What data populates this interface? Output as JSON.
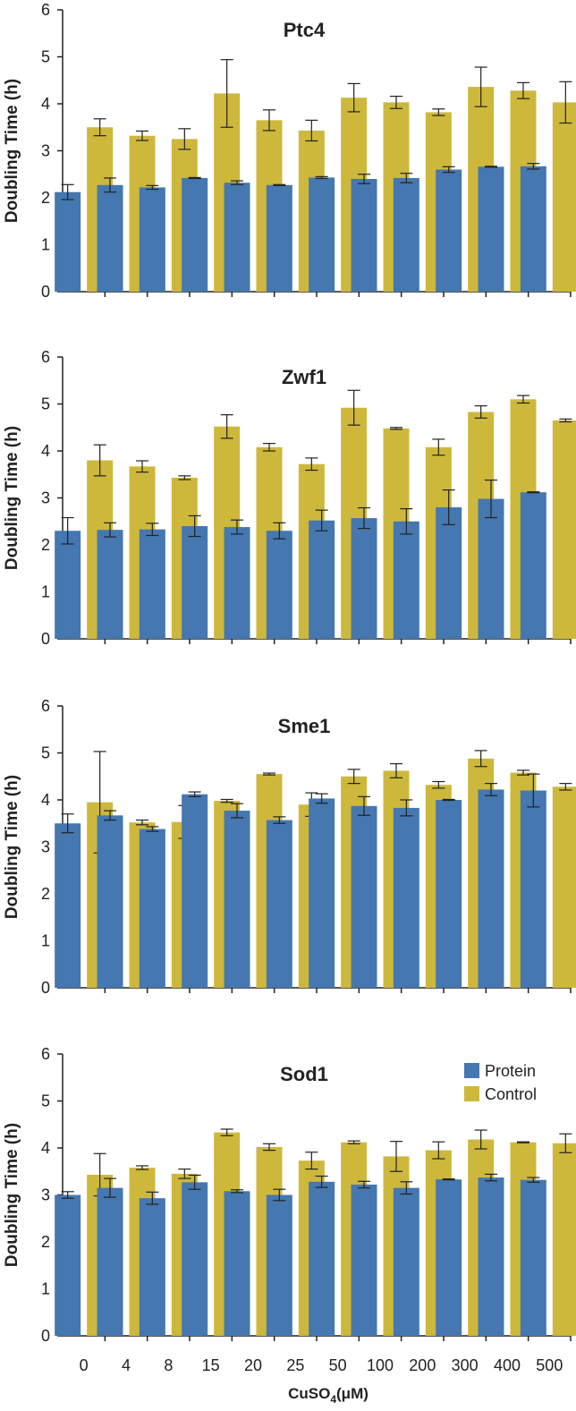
{
  "colors": {
    "protein": "#4577B0",
    "control": "#CDB83C",
    "axis": "#222222",
    "error": "#222222"
  },
  "legend": {
    "items": [
      {
        "label": "Protein"
      },
      {
        "label": "Control"
      }
    ],
    "placement": "top-right of bottom panel"
  },
  "xaxis": {
    "label_main": "CuSO",
    "label_sub": "4",
    "label_unit": "(μM)"
  },
  "chart_data": [
    {
      "type": "bar",
      "title": "Ptc4",
      "ylabel": "Doubling Time (h)",
      "ylim": [
        0,
        6
      ],
      "categories": [
        "0",
        "4",
        "8",
        "15",
        "20",
        "25",
        "50",
        "100",
        "200",
        "300",
        "400",
        "500"
      ],
      "series": [
        {
          "name": "Protein",
          "values": [
            2.12,
            2.27,
            2.22,
            2.42,
            2.32,
            2.27,
            2.43,
            2.4,
            2.42,
            2.6,
            2.66,
            2.67
          ],
          "errors": [
            0.16,
            0.15,
            0.04,
            0.01,
            0.04,
            0.01,
            0.02,
            0.1,
            0.1,
            0.06,
            0.01,
            0.06
          ]
        },
        {
          "name": "Control",
          "values": [
            3.5,
            3.32,
            3.25,
            4.22,
            3.65,
            3.43,
            4.13,
            4.03,
            3.82,
            4.36,
            4.28,
            4.03
          ],
          "errors": [
            0.18,
            0.1,
            0.22,
            0.72,
            0.22,
            0.22,
            0.3,
            0.13,
            0.07,
            0.42,
            0.17,
            0.44
          ]
        }
      ]
    },
    {
      "type": "bar",
      "title": "Zwf1",
      "ylabel": "Doubling Time (h)",
      "ylim": [
        0,
        6
      ],
      "categories": [
        "0",
        "4",
        "8",
        "15",
        "20",
        "25",
        "50",
        "100",
        "200",
        "300",
        "400",
        "500"
      ],
      "series": [
        {
          "name": "Protein",
          "values": [
            2.3,
            2.32,
            2.33,
            2.4,
            2.38,
            2.3,
            2.52,
            2.57,
            2.5,
            2.8,
            2.98,
            3.12
          ],
          "errors": [
            0.28,
            0.15,
            0.13,
            0.22,
            0.15,
            0.17,
            0.22,
            0.22,
            0.27,
            0.37,
            0.4,
            0.01
          ]
        },
        {
          "name": "Control",
          "values": [
            3.8,
            3.67,
            3.43,
            4.52,
            4.08,
            3.72,
            4.92,
            4.48,
            4.08,
            4.83,
            5.1,
            4.65
          ],
          "errors": [
            0.33,
            0.12,
            0.04,
            0.25,
            0.08,
            0.13,
            0.37,
            0.02,
            0.17,
            0.13,
            0.08,
            0.03
          ]
        }
      ]
    },
    {
      "type": "bar",
      "title": "Sme1",
      "ylabel": "Doubling Time (h)",
      "ylim": [
        0,
        6
      ],
      "categories": [
        "0",
        "4",
        "8",
        "15",
        "20",
        "25",
        "50",
        "100",
        "200",
        "300",
        "400",
        "500"
      ],
      "series": [
        {
          "name": "Protein",
          "values": [
            3.5,
            3.67,
            3.38,
            4.12,
            3.77,
            3.57,
            4.03,
            3.87,
            3.83,
            4.0,
            4.22,
            4.2
          ],
          "errors": [
            0.2,
            0.1,
            0.05,
            0.05,
            0.15,
            0.07,
            0.1,
            0.2,
            0.17,
            0.01,
            0.13,
            0.35
          ]
        },
        {
          "name": "Control",
          "values": [
            3.95,
            3.52,
            3.53,
            3.98,
            4.55,
            3.9,
            4.5,
            4.62,
            4.32,
            4.88,
            4.58,
            4.28
          ],
          "errors": [
            1.08,
            0.05,
            0.35,
            0.03,
            0.02,
            0.25,
            0.15,
            0.15,
            0.07,
            0.17,
            0.05,
            0.07
          ]
        }
      ]
    },
    {
      "type": "bar",
      "title": "Sod1",
      "ylabel": "Doubling Time (h)",
      "ylim": [
        0,
        6
      ],
      "categories": [
        "0",
        "4",
        "8",
        "15",
        "20",
        "25",
        "50",
        "100",
        "200",
        "300",
        "400",
        "500"
      ],
      "series": [
        {
          "name": "Protein",
          "values": [
            3.0,
            3.15,
            2.93,
            3.27,
            3.08,
            3.0,
            3.28,
            3.22,
            3.15,
            3.33,
            3.37,
            3.32
          ],
          "errors": [
            0.07,
            0.2,
            0.13,
            0.15,
            0.03,
            0.12,
            0.12,
            0.07,
            0.13,
            0.01,
            0.07,
            0.05
          ]
        },
        {
          "name": "Control",
          "values": [
            3.43,
            3.58,
            3.45,
            4.33,
            4.02,
            3.73,
            4.12,
            3.82,
            3.95,
            4.18,
            4.12,
            4.1
          ],
          "errors": [
            0.45,
            0.04,
            0.1,
            0.07,
            0.07,
            0.18,
            0.03,
            0.32,
            0.18,
            0.2,
            0.01,
            0.2
          ]
        }
      ]
    }
  ]
}
